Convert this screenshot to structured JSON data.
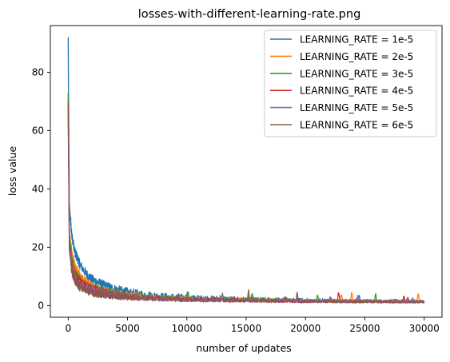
{
  "chart_data": {
    "type": "line",
    "title": "losses-with-different-learning-rate.png",
    "xlabel": "number of updates",
    "ylabel": "loss value",
    "xlim": [
      -1500,
      31500
    ],
    "ylim": [
      -4,
      96
    ],
    "xticks": [
      0,
      5000,
      10000,
      15000,
      20000,
      25000,
      30000
    ],
    "xtick_labels": [
      "0",
      "5000",
      "10000",
      "15000",
      "20000",
      "25000",
      "30000"
    ],
    "yticks": [
      0,
      20,
      40,
      60,
      80
    ],
    "ytick_labels": [
      "0",
      "20",
      "40",
      "60",
      "80"
    ],
    "grid": false,
    "legend_position": "top-right",
    "series": [
      {
        "name": "LEARNING_RATE = 1e-5",
        "color": "#1f77b4",
        "x": [
          0,
          100,
          300,
          600,
          1000,
          1500,
          2000,
          3000,
          4000,
          5000,
          6000,
          8000,
          10000,
          12000,
          15000,
          18000,
          20000,
          22000,
          24000,
          26000,
          28000,
          30000
        ],
        "y": [
          92,
          35,
          24,
          18,
          14,
          11,
          9,
          7,
          5.5,
          4.5,
          4,
          3.2,
          2.8,
          2.5,
          2.2,
          2.0,
          1.9,
          1.8,
          1.7,
          1.6,
          1.6,
          1.5
        ],
        "spikes": [
          [
            10000,
            5.5
          ],
          [
            24500,
            4
          ]
        ]
      },
      {
        "name": "LEARNING_RATE = 2e-5",
        "color": "#ff7f0e",
        "x": [
          0,
          100,
          300,
          600,
          1000,
          1500,
          2000,
          3000,
          4000,
          5000,
          6000,
          8000,
          10000,
          12000,
          15000,
          18000,
          20000,
          22000,
          24000,
          26000,
          28000,
          30000
        ],
        "y": [
          72,
          26,
          18,
          13,
          10,
          8,
          6.5,
          5,
          4.2,
          3.6,
          3.2,
          2.7,
          2.4,
          2.2,
          2.0,
          1.8,
          1.7,
          1.6,
          1.6,
          1.5,
          1.5,
          1.4
        ],
        "spikes": [
          [
            23000,
            5
          ],
          [
            23900,
            5.5
          ],
          [
            29500,
            4.5
          ]
        ]
      },
      {
        "name": "LEARNING_RATE = 3e-5",
        "color": "#2ca02c",
        "x": [
          0,
          100,
          300,
          600,
          1000,
          1500,
          2000,
          3000,
          4000,
          5000,
          6000,
          8000,
          10000,
          12000,
          15000,
          18000,
          20000,
          22000,
          24000,
          26000,
          28000,
          30000
        ],
        "y": [
          73,
          24,
          16,
          11,
          8.5,
          7,
          5.8,
          4.6,
          3.8,
          3.3,
          3.0,
          2.5,
          2.2,
          2.0,
          1.9,
          1.7,
          1.6,
          1.5,
          1.5,
          1.4,
          1.4,
          1.3
        ],
        "spikes": [
          [
            10100,
            6
          ],
          [
            15500,
            5
          ],
          [
            21000,
            4.5
          ],
          [
            25900,
            4.5
          ]
        ]
      },
      {
        "name": "LEARNING_RATE = 4e-5",
        "color": "#d62728",
        "x": [
          0,
          100,
          300,
          600,
          1000,
          1500,
          2000,
          3000,
          4000,
          5000,
          6000,
          8000,
          10000,
          12000,
          15000,
          18000,
          20000,
          22000,
          24000,
          26000,
          28000,
          30000
        ],
        "y": [
          70,
          22,
          14,
          10,
          8,
          6.5,
          5.5,
          4.3,
          3.6,
          3.1,
          2.8,
          2.4,
          2.1,
          1.9,
          1.8,
          1.6,
          1.5,
          1.5,
          1.4,
          1.4,
          1.3,
          1.3
        ],
        "spikes": [
          [
            22800,
            5.5
          ],
          [
            28300,
            4
          ]
        ]
      },
      {
        "name": "LEARNING_RATE = 5e-5",
        "color": "#9467bd",
        "x": [
          0,
          100,
          300,
          600,
          1000,
          1500,
          2000,
          3000,
          4000,
          5000,
          6000,
          8000,
          10000,
          12000,
          15000,
          18000,
          20000,
          22000,
          24000,
          26000,
          28000,
          30000
        ],
        "y": [
          66,
          20,
          13,
          9,
          7,
          6,
          5,
          4,
          3.4,
          3.0,
          2.7,
          2.3,
          2.0,
          1.9,
          1.7,
          1.6,
          1.5,
          1.4,
          1.4,
          1.3,
          1.3,
          1.2
        ],
        "spikes": [
          [
            12800,
            4
          ],
          [
            22100,
            4
          ],
          [
            24400,
            4
          ],
          [
            29000,
            3.5
          ]
        ]
      },
      {
        "name": "LEARNING_RATE = 6e-5",
        "color": "#8c564b",
        "x": [
          0,
          100,
          300,
          600,
          1000,
          1500,
          2000,
          3000,
          4000,
          5000,
          6000,
          8000,
          10000,
          12000,
          15000,
          18000,
          20000,
          22000,
          24000,
          26000,
          28000,
          30000
        ],
        "y": [
          70,
          19,
          12,
          8.5,
          6.5,
          5.5,
          4.6,
          3.8,
          3.2,
          2.9,
          2.6,
          2.2,
          2.0,
          1.8,
          1.7,
          1.5,
          1.4,
          1.4,
          1.3,
          1.3,
          1.2,
          1.2
        ],
        "spikes": [
          [
            7500,
            4
          ],
          [
            9300,
            4
          ],
          [
            13000,
            5
          ],
          [
            15200,
            5.5
          ],
          [
            18300,
            4
          ],
          [
            19300,
            5
          ],
          [
            28600,
            4
          ]
        ]
      }
    ]
  }
}
